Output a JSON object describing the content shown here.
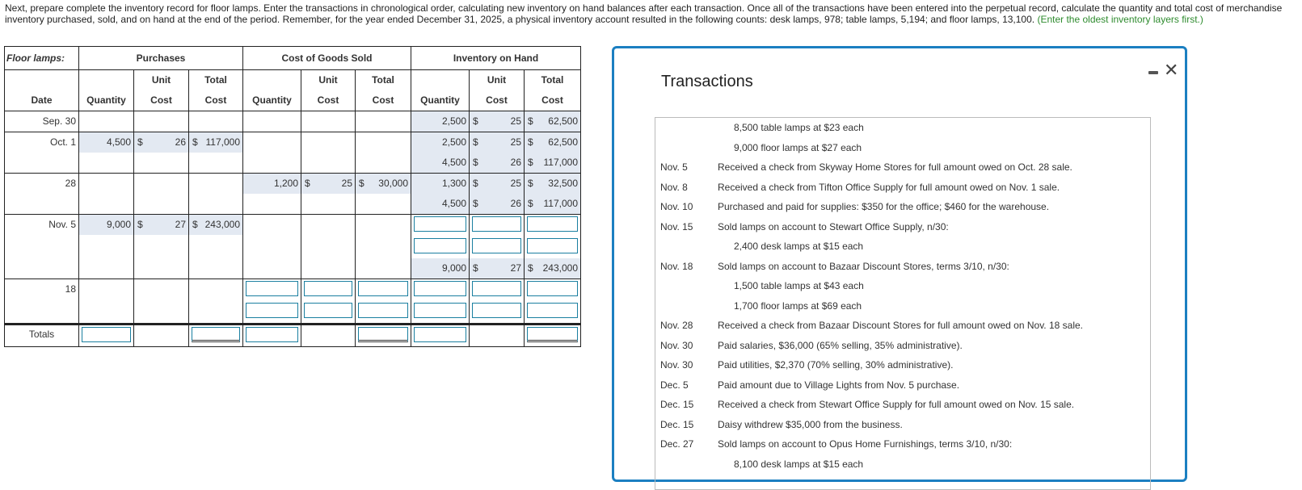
{
  "intro": {
    "text": "Next, prepare complete the inventory record for floor lamps. Enter the transactions in chronological order, calculating new inventory on hand balances after each transaction. Once all of the transactions have been entered into the perpetual record, calculate the quantity and total cost of merchandise inventory purchased, sold, and on hand at the end of the period. Remember, for the year ended December 31, 2025, a physical inventory account resulted in the following counts: desk lamps, 978; table lamps, 5,194; and floor lamps, 13,100.",
    "note": "(Enter the oldest inventory layers first.)"
  },
  "table": {
    "title": "Floor lamps:",
    "groups": [
      "Purchases",
      "Cost of Goods Sold",
      "Inventory on Hand"
    ],
    "date_header": "Date",
    "col_headers": [
      [
        "",
        "Quantity"
      ],
      [
        "Unit",
        "Cost"
      ],
      [
        "Total",
        "Cost"
      ]
    ],
    "currency": "$",
    "rows": [
      {
        "date": "Sep. 30",
        "lines": 1,
        "purchases": [],
        "cogs": [],
        "inventory": [
          {
            "q": "2,500",
            "u": "25",
            "t": "62,500"
          }
        ]
      },
      {
        "date": "Oct. 1",
        "lines": 2,
        "purchases": [
          {
            "q": "4,500",
            "u": "26",
            "t": "117,000"
          }
        ],
        "cogs": [],
        "inventory": [
          {
            "q": "2,500",
            "u": "25",
            "t": "62,500"
          },
          {
            "q": "4,500",
            "u": "26",
            "t": "117,000"
          }
        ]
      },
      {
        "date": "28",
        "lines": 2,
        "purchases": [],
        "cogs": [
          {
            "q": "1,200",
            "u": "25",
            "t": "30,000"
          }
        ],
        "inventory": [
          {
            "q": "1,300",
            "u": "25",
            "t": "32,500"
          },
          {
            "q": "4,500",
            "u": "26",
            "t": "117,000"
          }
        ]
      },
      {
        "date": "Nov. 5",
        "lines": 3,
        "purchases": [
          {
            "q": "9,000",
            "u": "27",
            "t": "243,000"
          }
        ],
        "cogs": [],
        "inventory": [
          "input",
          "input",
          {
            "q": "9,000",
            "u": "27",
            "t": "243,000"
          }
        ]
      },
      {
        "date": "18",
        "lines": 2,
        "purchases": [],
        "cogs": [
          "input",
          "input"
        ],
        "inventory": [
          "input",
          "input"
        ]
      }
    ],
    "totals_label": "Totals"
  },
  "modal": {
    "title": "Transactions",
    "items": [
      {
        "date": "",
        "text": "8,500 table lamps at $23 each",
        "sub": true
      },
      {
        "date": "",
        "text": "9,000 floor lamps at $27 each",
        "sub": true
      },
      {
        "date": "Nov. 5",
        "text": "Received a check from Skyway Home Stores for full amount owed on Oct. 28 sale."
      },
      {
        "date": "Nov. 8",
        "text": "Received a check from Tifton Office Supply for full amount owed on Nov. 1 sale."
      },
      {
        "date": "Nov. 10",
        "text": "Purchased and paid for supplies: $350 for the office; $460 for the warehouse."
      },
      {
        "date": "Nov. 15",
        "text": "Sold lamps on account to Stewart Office Supply, n/30:"
      },
      {
        "date": "",
        "text": "2,400 desk lamps at $15 each",
        "sub": true
      },
      {
        "date": "Nov. 18",
        "text": "Sold lamps on account to Bazaar Discount Stores, terms 3/10, n/30:"
      },
      {
        "date": "",
        "text": "1,500 table lamps at $43 each",
        "sub": true
      },
      {
        "date": "",
        "text": "1,700 floor lamps at $69 each",
        "sub": true
      },
      {
        "date": "Nov. 28",
        "text": "Received a check from Bazaar Discount Stores for full amount owed on Nov. 18 sale."
      },
      {
        "date": "Nov. 30",
        "text": "Paid salaries, $36,000 (65% selling, 35% administrative)."
      },
      {
        "date": "Nov. 30",
        "text": "Paid utilities, $2,370 (70% selling, 30% administrative)."
      },
      {
        "date": "Dec. 5",
        "text": "Paid amount due to Village Lights from Nov. 5 purchase."
      },
      {
        "date": "Dec. 15",
        "text": "Received a check from Stewart Office Supply for full amount owed on Nov. 15 sale."
      },
      {
        "date": "Dec. 15",
        "text": "Daisy withdrew $35,000 from the business."
      },
      {
        "date": "Dec. 27",
        "text": "Sold lamps on account to Opus Home Furnishings, terms 3/10, n/30:"
      },
      {
        "date": "",
        "text": "8,100 desk lamps at $15 each",
        "sub": true
      }
    ]
  }
}
